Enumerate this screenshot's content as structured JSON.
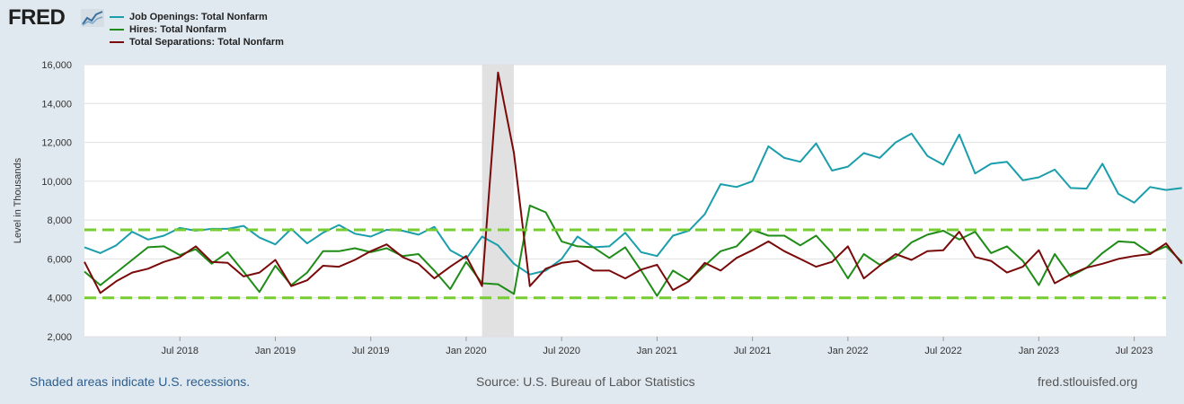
{
  "header": {
    "logo_text": "FRED",
    "logo_icon": "line-chart-icon"
  },
  "footer": {
    "recession_note": "Shaded areas indicate U.S. recessions.",
    "source": "Source: U.S. Bureau of Labor Statistics",
    "site": "fred.stlouisfed.org"
  },
  "colors": {
    "background": "#e1e9f0",
    "plot_background": "#ffffff",
    "recession_shade": "#e1e1e1",
    "grid": "#e0e0e0",
    "reference_line": "#77cc33"
  },
  "chart_data": {
    "type": "line",
    "title": "",
    "xlabel": "",
    "ylabel": "Level in Thousands",
    "ylim": [
      2000,
      16000
    ],
    "yticks": [
      2000,
      4000,
      6000,
      8000,
      10000,
      12000,
      14000,
      16000
    ],
    "ytick_labels": [
      "2,000",
      "4,000",
      "6,000",
      "8,000",
      "10,000",
      "12,000",
      "14,000",
      "16,000"
    ],
    "x_start": "2018-01",
    "x_end": "2023-09",
    "xticks": [
      {
        "date": "2018-07",
        "label": "Jul 2018"
      },
      {
        "date": "2019-01",
        "label": "Jan 2019"
      },
      {
        "date": "2019-07",
        "label": "Jul 2019"
      },
      {
        "date": "2020-01",
        "label": "Jan 2020"
      },
      {
        "date": "2020-07",
        "label": "Jul 2020"
      },
      {
        "date": "2021-01",
        "label": "Jan 2021"
      },
      {
        "date": "2021-07",
        "label": "Jul 2021"
      },
      {
        "date": "2022-01",
        "label": "Jan 2022"
      },
      {
        "date": "2022-07",
        "label": "Jul 2022"
      },
      {
        "date": "2023-01",
        "label": "Jan 2023"
      },
      {
        "date": "2023-07",
        "label": "Jul 2023"
      }
    ],
    "grid": true,
    "legend_placement": "top-left",
    "recessions": [
      {
        "start": "2020-02",
        "end": "2020-04"
      }
    ],
    "reference_lines": [
      {
        "value": 7500,
        "style": "dashed"
      },
      {
        "value": 4000,
        "style": "dashed"
      }
    ],
    "series": [
      {
        "name": "Job Openings: Total Nonfarm",
        "color": "#1b9eac",
        "start": "2018-01",
        "values": [
          6600,
          6300,
          6700,
          7400,
          7000,
          7200,
          7600,
          7450,
          7550,
          7550,
          7700,
          7100,
          6750,
          7550,
          6800,
          7350,
          7750,
          7300,
          7150,
          7500,
          7450,
          7250,
          7650,
          6450,
          6000,
          7150,
          6700,
          5750,
          5200,
          5400,
          6000,
          7150,
          6600,
          6650,
          7350,
          6350,
          6150,
          7200,
          7450,
          8300,
          9850,
          9700,
          10000,
          11800,
          11200,
          11000,
          11950,
          10550,
          10750,
          11450,
          11200,
          12000,
          12450,
          11300,
          10850,
          12400,
          10400,
          10900,
          11000,
          10050,
          10200,
          10600,
          9650,
          9620,
          10900,
          9350,
          8900,
          9700,
          9550,
          9650
        ]
      },
      {
        "name": "Hires: Total Nonfarm",
        "color": "#1e8c17",
        "start": "2018-01",
        "values": [
          5350,
          4650,
          5300,
          5950,
          6600,
          6650,
          6200,
          6500,
          5750,
          6350,
          5350,
          4300,
          5650,
          4650,
          5300,
          6400,
          6400,
          6550,
          6350,
          6550,
          6150,
          6250,
          5400,
          4450,
          5850,
          4750,
          4700,
          4200,
          8750,
          8400,
          6900,
          6650,
          6600,
          6050,
          6600,
          5400,
          4100,
          5400,
          4900,
          5650,
          6400,
          6650,
          7500,
          7200,
          7200,
          6700,
          7200,
          6300,
          5000,
          6250,
          5700,
          6100,
          6850,
          7250,
          7450,
          7000,
          7400,
          6300,
          6650,
          5900,
          4650,
          6250,
          5100,
          5550,
          6300,
          6900,
          6850,
          6300,
          6650,
          5850
        ]
      },
      {
        "name": "Total Separations: Total Nonfarm",
        "color": "#7a0a0a",
        "start": "2018-01",
        "values": [
          5850,
          4250,
          4850,
          5300,
          5500,
          5850,
          6100,
          6650,
          5850,
          5800,
          5100,
          5300,
          5950,
          4600,
          4900,
          5650,
          5600,
          5950,
          6400,
          6750,
          6100,
          5750,
          5000,
          5600,
          6150,
          4600,
          15600,
          11450,
          4600,
          5500,
          5800,
          5900,
          5400,
          5400,
          5000,
          5450,
          5700,
          4400,
          4850,
          5800,
          5400,
          6050,
          6450,
          6900,
          6400,
          6000,
          5600,
          5850,
          6650,
          5000,
          5650,
          6250,
          5950,
          6400,
          6450,
          7400,
          6100,
          5900,
          5300,
          5600,
          6450,
          4750,
          5200,
          5550,
          5750,
          6000,
          6150,
          6250,
          6800,
          5750
        ]
      }
    ]
  }
}
